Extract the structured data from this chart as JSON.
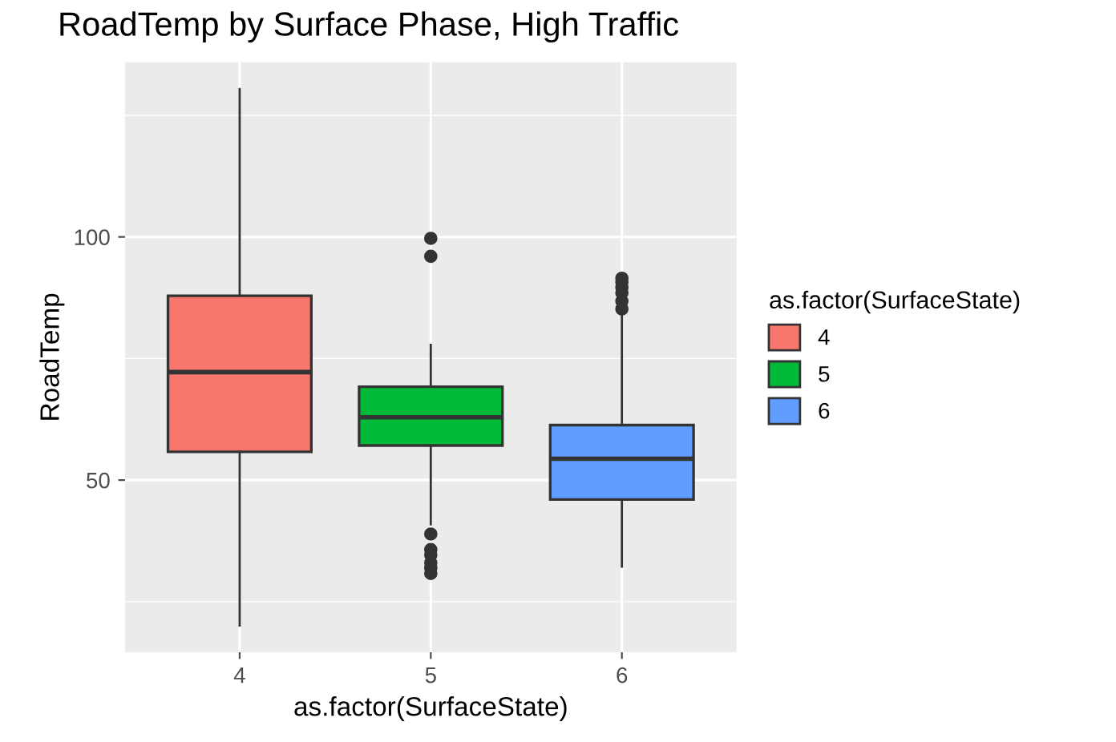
{
  "chart_data": {
    "type": "box",
    "title": "RoadTemp by Surface Phase, High Traffic",
    "xlabel": "as.factor(SurfaceState)",
    "ylabel": "RoadTemp",
    "legend_title": "as.factor(SurfaceState)",
    "legend": "right",
    "categories": [
      "4",
      "5",
      "6"
    ],
    "series": [
      {
        "name": "4",
        "color": "#f8766d",
        "boxes": [
          {
            "low": 20.1,
            "q1": 55.8,
            "median": 72.2,
            "q3": 87.9,
            "high": 130.4
          },
          null,
          null
        ]
      },
      {
        "name": "5",
        "color": "#00ba38",
        "boxes": [
          null,
          {
            "low": 40.9,
            "q1": 57.1,
            "median": 62.9,
            "q3": 69.2,
            "high": 77.8,
            "outliers": [
              99.7,
              96.0,
              38.9,
              35.7,
              34.6,
              33.0,
              31.9,
              30.8
            ]
          },
          null
        ]
      },
      {
        "name": "6",
        "color": "#619cff",
        "boxes": [
          null,
          null,
          {
            "low": 32.2,
            "q1": 46.0,
            "median": 54.4,
            "q3": 61.3,
            "high": 84.1,
            "outliers": [
              91.5,
              90.7,
              89.6,
              88.5,
              86.8,
              85.2
            ]
          }
        ]
      }
    ],
    "ylim": [
      14.6,
      135.9
    ],
    "yticks": [
      50,
      100
    ],
    "grid": true
  }
}
